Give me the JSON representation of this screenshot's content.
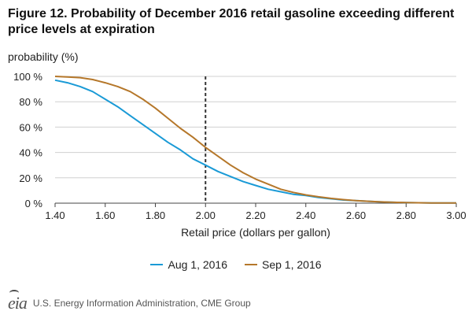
{
  "title": "Figure 12. Probability of December 2016 retail gasoline exceeding different price levels at expiration",
  "chart_data": {
    "type": "line",
    "ylabel": "probability (%)",
    "xlabel": "Retail price (dollars per gallon)",
    "xlim": [
      1.4,
      3.0
    ],
    "ylim": [
      0,
      100
    ],
    "x_ticks": [
      "1.40",
      "1.60",
      "1.80",
      "2.00",
      "2.20",
      "2.40",
      "2.60",
      "2.80",
      "3.00"
    ],
    "x_tick_values": [
      1.4,
      1.6,
      1.8,
      2.0,
      2.2,
      2.4,
      2.6,
      2.8,
      3.0
    ],
    "y_ticks": [
      "0 %",
      "20 %",
      "40 %",
      "60 %",
      "80 %",
      "100 %"
    ],
    "y_tick_values": [
      0,
      20,
      40,
      60,
      80,
      100
    ],
    "reference_line_x": 2.0,
    "legend_position": "bottom",
    "series": [
      {
        "name": "Aug 1, 2016",
        "color": "#1a9ad6",
        "x": [
          1.4,
          1.45,
          1.5,
          1.55,
          1.6,
          1.65,
          1.7,
          1.75,
          1.8,
          1.85,
          1.9,
          1.95,
          2.0,
          2.05,
          2.1,
          2.15,
          2.2,
          2.25,
          2.3,
          2.35,
          2.4,
          2.45,
          2.5,
          2.55,
          2.6,
          2.65,
          2.7,
          2.75,
          2.8,
          2.9,
          3.0
        ],
        "values": [
          97,
          95,
          92,
          88,
          82,
          76,
          69,
          62,
          55,
          48,
          42,
          35,
          30,
          25,
          21,
          17,
          14,
          11,
          9,
          7,
          6,
          4.5,
          3.5,
          2.5,
          2,
          1.5,
          1,
          0.7,
          0.5,
          0.2,
          0.1
        ]
      },
      {
        "name": "Sep 1, 2016",
        "color": "#b5772a",
        "x": [
          1.4,
          1.45,
          1.5,
          1.55,
          1.6,
          1.65,
          1.7,
          1.75,
          1.8,
          1.85,
          1.9,
          1.95,
          2.0,
          2.05,
          2.1,
          2.15,
          2.2,
          2.25,
          2.3,
          2.35,
          2.4,
          2.45,
          2.5,
          2.55,
          2.6,
          2.65,
          2.7,
          2.75,
          2.8,
          2.9,
          3.0
        ],
        "values": [
          100,
          99.5,
          99,
          97.5,
          95,
          92,
          88,
          82,
          75,
          67,
          59,
          52,
          44,
          37,
          30,
          24,
          19,
          15,
          11,
          8.5,
          6.5,
          5,
          3.8,
          2.8,
          2,
          1.5,
          1,
          0.7,
          0.5,
          0.2,
          0.1
        ]
      }
    ]
  },
  "footer": {
    "logo_text": "eia",
    "source": "U.S. Energy Information Administration, CME Group"
  }
}
